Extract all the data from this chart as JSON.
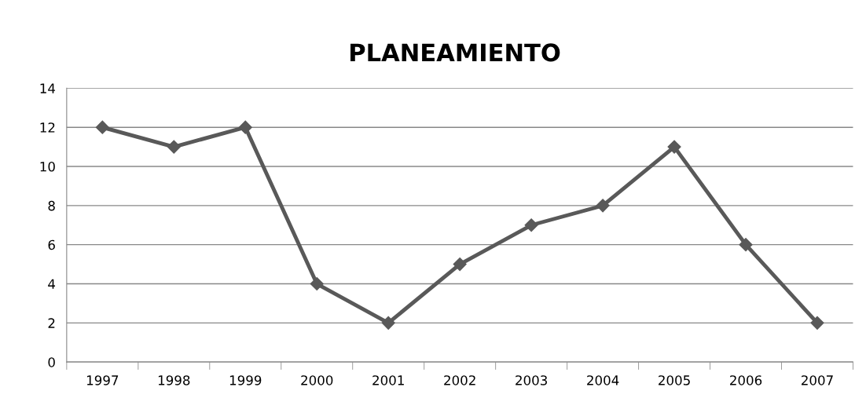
{
  "chart_data": {
    "type": "line",
    "title": "PLANEAMIENTO",
    "categories": [
      "1997",
      "1998",
      "1999",
      "2000",
      "2001",
      "2002",
      "2003",
      "2004",
      "2005",
      "2006",
      "2007"
    ],
    "series": [
      {
        "color": "#595959",
        "values": [
          12,
          11,
          12,
          4,
          2,
          5,
          7,
          8,
          11,
          6,
          2
        ]
      }
    ],
    "ylim": [
      0,
      14
    ],
    "yticks": [
      0,
      2,
      4,
      6,
      8,
      10,
      12,
      14
    ],
    "grid": "y",
    "marker": "diamond",
    "line_style": "solid"
  }
}
